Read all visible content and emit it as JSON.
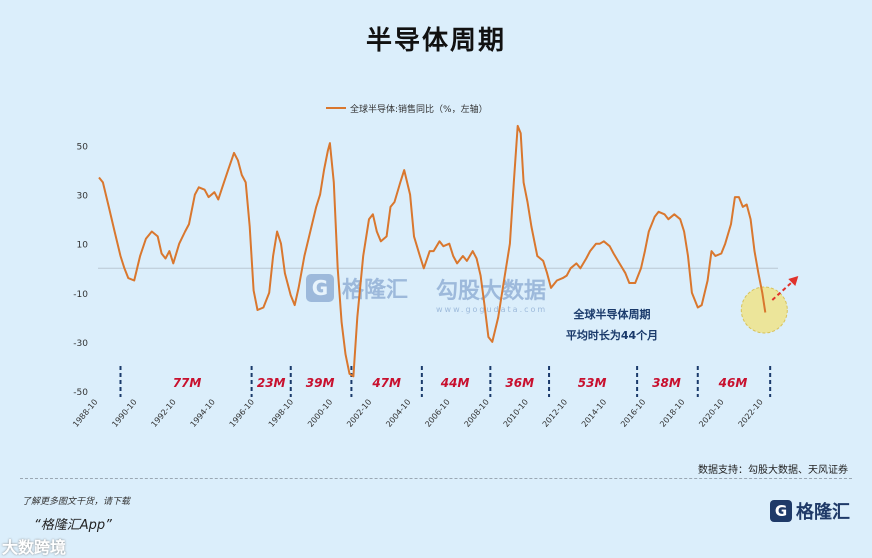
{
  "title": "半导体周期",
  "source": "数据支持：勾股大数据、天风证券",
  "footer": {
    "more_text": "了解更多图文干货，请下载",
    "app_name": "“格隆汇App”",
    "bottom_watermark": "大数跨境",
    "logo_text": "格隆汇",
    "logo_mark": "G"
  },
  "watermarks": {
    "brand": "格隆汇",
    "mark": "G",
    "gougu": "勾股大数据",
    "gougu_url": "www.gogudata.com"
  },
  "annotation": {
    "line1": "全球半导体周期",
    "line2": "平均时长为44个月"
  },
  "colors": {
    "line": "#d9772e",
    "cycle_label": "#c8102e",
    "divider": "#1a3a6b",
    "highlight": "#f1e27a",
    "arrow": "#e0322b"
  },
  "chart_data": {
    "type": "line",
    "legend": "全球半导体:销售同比（%，左轴）",
    "ylim": [
      -50,
      60
    ],
    "yticks": [
      50,
      30,
      10,
      -10,
      -30,
      -50
    ],
    "xticks": [
      "1988-10",
      "1990-10",
      "1992-10",
      "1994-10",
      "1996-10",
      "1998-10",
      "2000-10",
      "2002-10",
      "2004-10",
      "2006-10",
      "2008-10",
      "2010-10",
      "2012-10",
      "2014-10",
      "2016-10",
      "2018-10",
      "2020-10",
      "2022-10"
    ],
    "x_start": 1988.75,
    "x_end": 2023.5,
    "series": [
      {
        "name": "全球半导体:销售同比（%，左轴）",
        "points": [
          [
            1988.8,
            37
          ],
          [
            1989.0,
            35
          ],
          [
            1989.3,
            25
          ],
          [
            1989.6,
            15
          ],
          [
            1989.9,
            5
          ],
          [
            1990.1,
            0
          ],
          [
            1990.3,
            -4
          ],
          [
            1990.6,
            -5
          ],
          [
            1990.9,
            5
          ],
          [
            1991.2,
            12
          ],
          [
            1991.5,
            15
          ],
          [
            1991.8,
            13
          ],
          [
            1992.0,
            6
          ],
          [
            1992.2,
            4
          ],
          [
            1992.4,
            7
          ],
          [
            1992.6,
            2
          ],
          [
            1992.9,
            10
          ],
          [
            1993.2,
            15
          ],
          [
            1993.4,
            18
          ],
          [
            1993.7,
            30
          ],
          [
            1993.9,
            33
          ],
          [
            1994.2,
            32
          ],
          [
            1994.4,
            29
          ],
          [
            1994.7,
            31
          ],
          [
            1994.9,
            28
          ],
          [
            1995.1,
            33
          ],
          [
            1995.4,
            40
          ],
          [
            1995.7,
            47
          ],
          [
            1995.9,
            44
          ],
          [
            1996.1,
            38
          ],
          [
            1996.3,
            35
          ],
          [
            1996.5,
            17
          ],
          [
            1996.7,
            -9
          ],
          [
            1996.9,
            -17
          ],
          [
            1997.2,
            -16
          ],
          [
            1997.5,
            -10
          ],
          [
            1997.7,
            5
          ],
          [
            1997.9,
            15
          ],
          [
            1998.1,
            10
          ],
          [
            1998.3,
            -2
          ],
          [
            1998.6,
            -11
          ],
          [
            1998.8,
            -15
          ],
          [
            1999.0,
            -8
          ],
          [
            1999.3,
            5
          ],
          [
            1999.6,
            15
          ],
          [
            1999.9,
            25
          ],
          [
            2000.1,
            30
          ],
          [
            2000.3,
            40
          ],
          [
            2000.5,
            48
          ],
          [
            2000.6,
            51
          ],
          [
            2000.8,
            35
          ],
          [
            2001.0,
            0
          ],
          [
            2001.2,
            -22
          ],
          [
            2001.4,
            -35
          ],
          [
            2001.6,
            -43
          ],
          [
            2001.8,
            -44
          ],
          [
            2002.0,
            -20
          ],
          [
            2002.3,
            5
          ],
          [
            2002.6,
            20
          ],
          [
            2002.8,
            22
          ],
          [
            2003.0,
            15
          ],
          [
            2003.2,
            11
          ],
          [
            2003.5,
            13
          ],
          [
            2003.7,
            25
          ],
          [
            2003.9,
            27
          ],
          [
            2004.2,
            35
          ],
          [
            2004.4,
            40
          ],
          [
            2004.7,
            30
          ],
          [
            2004.9,
            13
          ],
          [
            2005.2,
            5
          ],
          [
            2005.4,
            0
          ],
          [
            2005.7,
            7
          ],
          [
            2005.9,
            7
          ],
          [
            2006.2,
            11
          ],
          [
            2006.4,
            9
          ],
          [
            2006.7,
            10
          ],
          [
            2006.9,
            5
          ],
          [
            2007.1,
            2
          ],
          [
            2007.4,
            5
          ],
          [
            2007.6,
            3
          ],
          [
            2007.9,
            7
          ],
          [
            2008.1,
            4
          ],
          [
            2008.3,
            -3
          ],
          [
            2008.5,
            -15
          ],
          [
            2008.7,
            -28
          ],
          [
            2008.9,
            -30
          ],
          [
            2009.2,
            -20
          ],
          [
            2009.5,
            -5
          ],
          [
            2009.8,
            10
          ],
          [
            2010.0,
            35
          ],
          [
            2010.2,
            58
          ],
          [
            2010.35,
            55
          ],
          [
            2010.5,
            35
          ],
          [
            2010.7,
            27
          ],
          [
            2010.9,
            17
          ],
          [
            2011.2,
            5
          ],
          [
            2011.5,
            3
          ],
          [
            2011.7,
            -2
          ],
          [
            2011.9,
            -8
          ],
          [
            2012.2,
            -5
          ],
          [
            2012.5,
            -4
          ],
          [
            2012.7,
            -3
          ],
          [
            2012.9,
            0
          ],
          [
            2013.2,
            2
          ],
          [
            2013.4,
            0
          ],
          [
            2013.7,
            4
          ],
          [
            2013.9,
            7
          ],
          [
            2014.2,
            10
          ],
          [
            2014.4,
            10
          ],
          [
            2014.6,
            11
          ],
          [
            2014.9,
            9
          ],
          [
            2015.1,
            6
          ],
          [
            2015.4,
            2
          ],
          [
            2015.7,
            -2
          ],
          [
            2015.9,
            -6
          ],
          [
            2016.2,
            -6
          ],
          [
            2016.5,
            0
          ],
          [
            2016.7,
            7
          ],
          [
            2016.9,
            15
          ],
          [
            2017.2,
            21
          ],
          [
            2017.4,
            23
          ],
          [
            2017.7,
            22
          ],
          [
            2017.9,
            20
          ],
          [
            2018.2,
            22
          ],
          [
            2018.5,
            20
          ],
          [
            2018.7,
            15
          ],
          [
            2018.9,
            5
          ],
          [
            2019.1,
            -10
          ],
          [
            2019.4,
            -16
          ],
          [
            2019.6,
            -15
          ],
          [
            2019.9,
            -5
          ],
          [
            2020.1,
            7
          ],
          [
            2020.3,
            5
          ],
          [
            2020.6,
            6
          ],
          [
            2020.8,
            10
          ],
          [
            2021.1,
            18
          ],
          [
            2021.3,
            29
          ],
          [
            2021.5,
            29
          ],
          [
            2021.7,
            25
          ],
          [
            2021.9,
            26
          ],
          [
            2022.1,
            20
          ],
          [
            2022.3,
            7
          ],
          [
            2022.5,
            -2
          ],
          [
            2022.7,
            -10
          ],
          [
            2022.85,
            -18
          ]
        ]
      }
    ],
    "dividers": [
      1989.9,
      1996.6,
      1998.6,
      2001.7,
      2005.3,
      2008.8,
      2011.8,
      2016.3,
      2019.4,
      2023.1
    ],
    "cycles": [
      {
        "label": "77M",
        "x": 1993.3
      },
      {
        "label": "23M",
        "x": 1997.6
      },
      {
        "label": "39M",
        "x": 2000.1
      },
      {
        "label": "47M",
        "x": 2003.5
      },
      {
        "label": "44M",
        "x": 2007.0
      },
      {
        "label": "36M",
        "x": 2010.3
      },
      {
        "label": "53M",
        "x": 2014.0
      },
      {
        "label": "38M",
        "x": 2017.8
      },
      {
        "label": "46M",
        "x": 2021.2
      }
    ],
    "highlight_point": [
      2022.8,
      -17
    ]
  }
}
